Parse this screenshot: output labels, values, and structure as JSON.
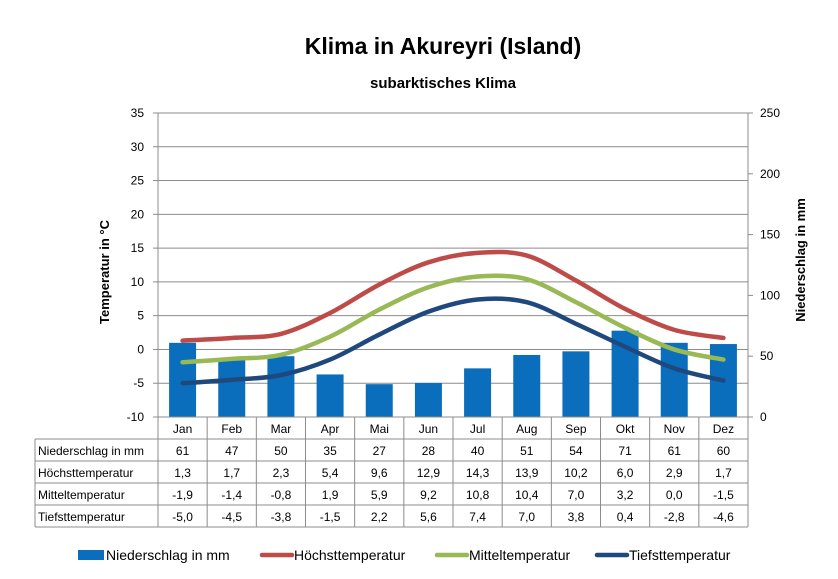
{
  "chart_data": {
    "type": "bar+line+table",
    "title": "Klima in Akureyri (Island)",
    "subtitle": "subarktisches Klima",
    "ylabel_left": "Temperatur  in  °C",
    "ylabel_right": "Niederschlag  in  mm",
    "ylim_left": [
      -10,
      35
    ],
    "ylim_right": [
      0,
      250
    ],
    "yticks_left": [
      "-10",
      "-5",
      "0",
      "5",
      "10",
      "15",
      "20",
      "25",
      "30",
      "35"
    ],
    "yticks_right": [
      "0",
      "50",
      "100",
      "150",
      "200",
      "250"
    ],
    "grid": true,
    "legend_position": "bottom",
    "categories": [
      "Jan",
      "Feb",
      "Mar",
      "Apr",
      "Mai",
      "Jun",
      "Jul",
      "Aug",
      "Sep",
      "Okt",
      "Nov",
      "Dez"
    ],
    "series": [
      {
        "name": "Niederschlag in mm",
        "type": "bar",
        "axis": "right",
        "color": "#0a6ebd",
        "values": [
          61,
          47,
          50,
          35,
          27,
          28,
          40,
          51,
          54,
          71,
          61,
          60
        ],
        "labels": [
          "61",
          "47",
          "50",
          "35",
          "27",
          "28",
          "40",
          "51",
          "54",
          "71",
          "61",
          "60"
        ]
      },
      {
        "name": "Höchsttemperatur",
        "type": "line",
        "axis": "left",
        "color": "#be4b48",
        "values": [
          1.3,
          1.7,
          2.3,
          5.4,
          9.6,
          12.9,
          14.3,
          13.9,
          10.2,
          6.0,
          2.9,
          1.7
        ],
        "labels": [
          "1,3",
          "1,7",
          "2,3",
          "5,4",
          "9,6",
          "12,9",
          "14,3",
          "13,9",
          "10,2",
          "6,0",
          "2,9",
          "1,7"
        ]
      },
      {
        "name": "Mitteltemperatur",
        "type": "line",
        "axis": "left",
        "color": "#98b954",
        "values": [
          -1.9,
          -1.4,
          -0.8,
          1.9,
          5.9,
          9.2,
          10.8,
          10.4,
          7.0,
          3.2,
          0.0,
          -1.5
        ],
        "labels": [
          "-1,9",
          "-1,4",
          "-0,8",
          "1,9",
          "5,9",
          "9,2",
          "10,8",
          "10,4",
          "7,0",
          "3,2",
          "0,0",
          "-1,5"
        ]
      },
      {
        "name": "Tiefsttemperatur",
        "type": "line",
        "axis": "left",
        "color": "#1f497d",
        "values": [
          -5.0,
          -4.5,
          -3.8,
          -1.5,
          2.2,
          5.6,
          7.4,
          7.0,
          3.8,
          0.4,
          -2.8,
          -4.6
        ],
        "labels": [
          "-5,0",
          "-4,5",
          "-3,8",
          "-1,5",
          "2,2",
          "5,6",
          "7,4",
          "7,0",
          "3,8",
          "0,4",
          "-2,8",
          "-4,6"
        ]
      }
    ]
  }
}
